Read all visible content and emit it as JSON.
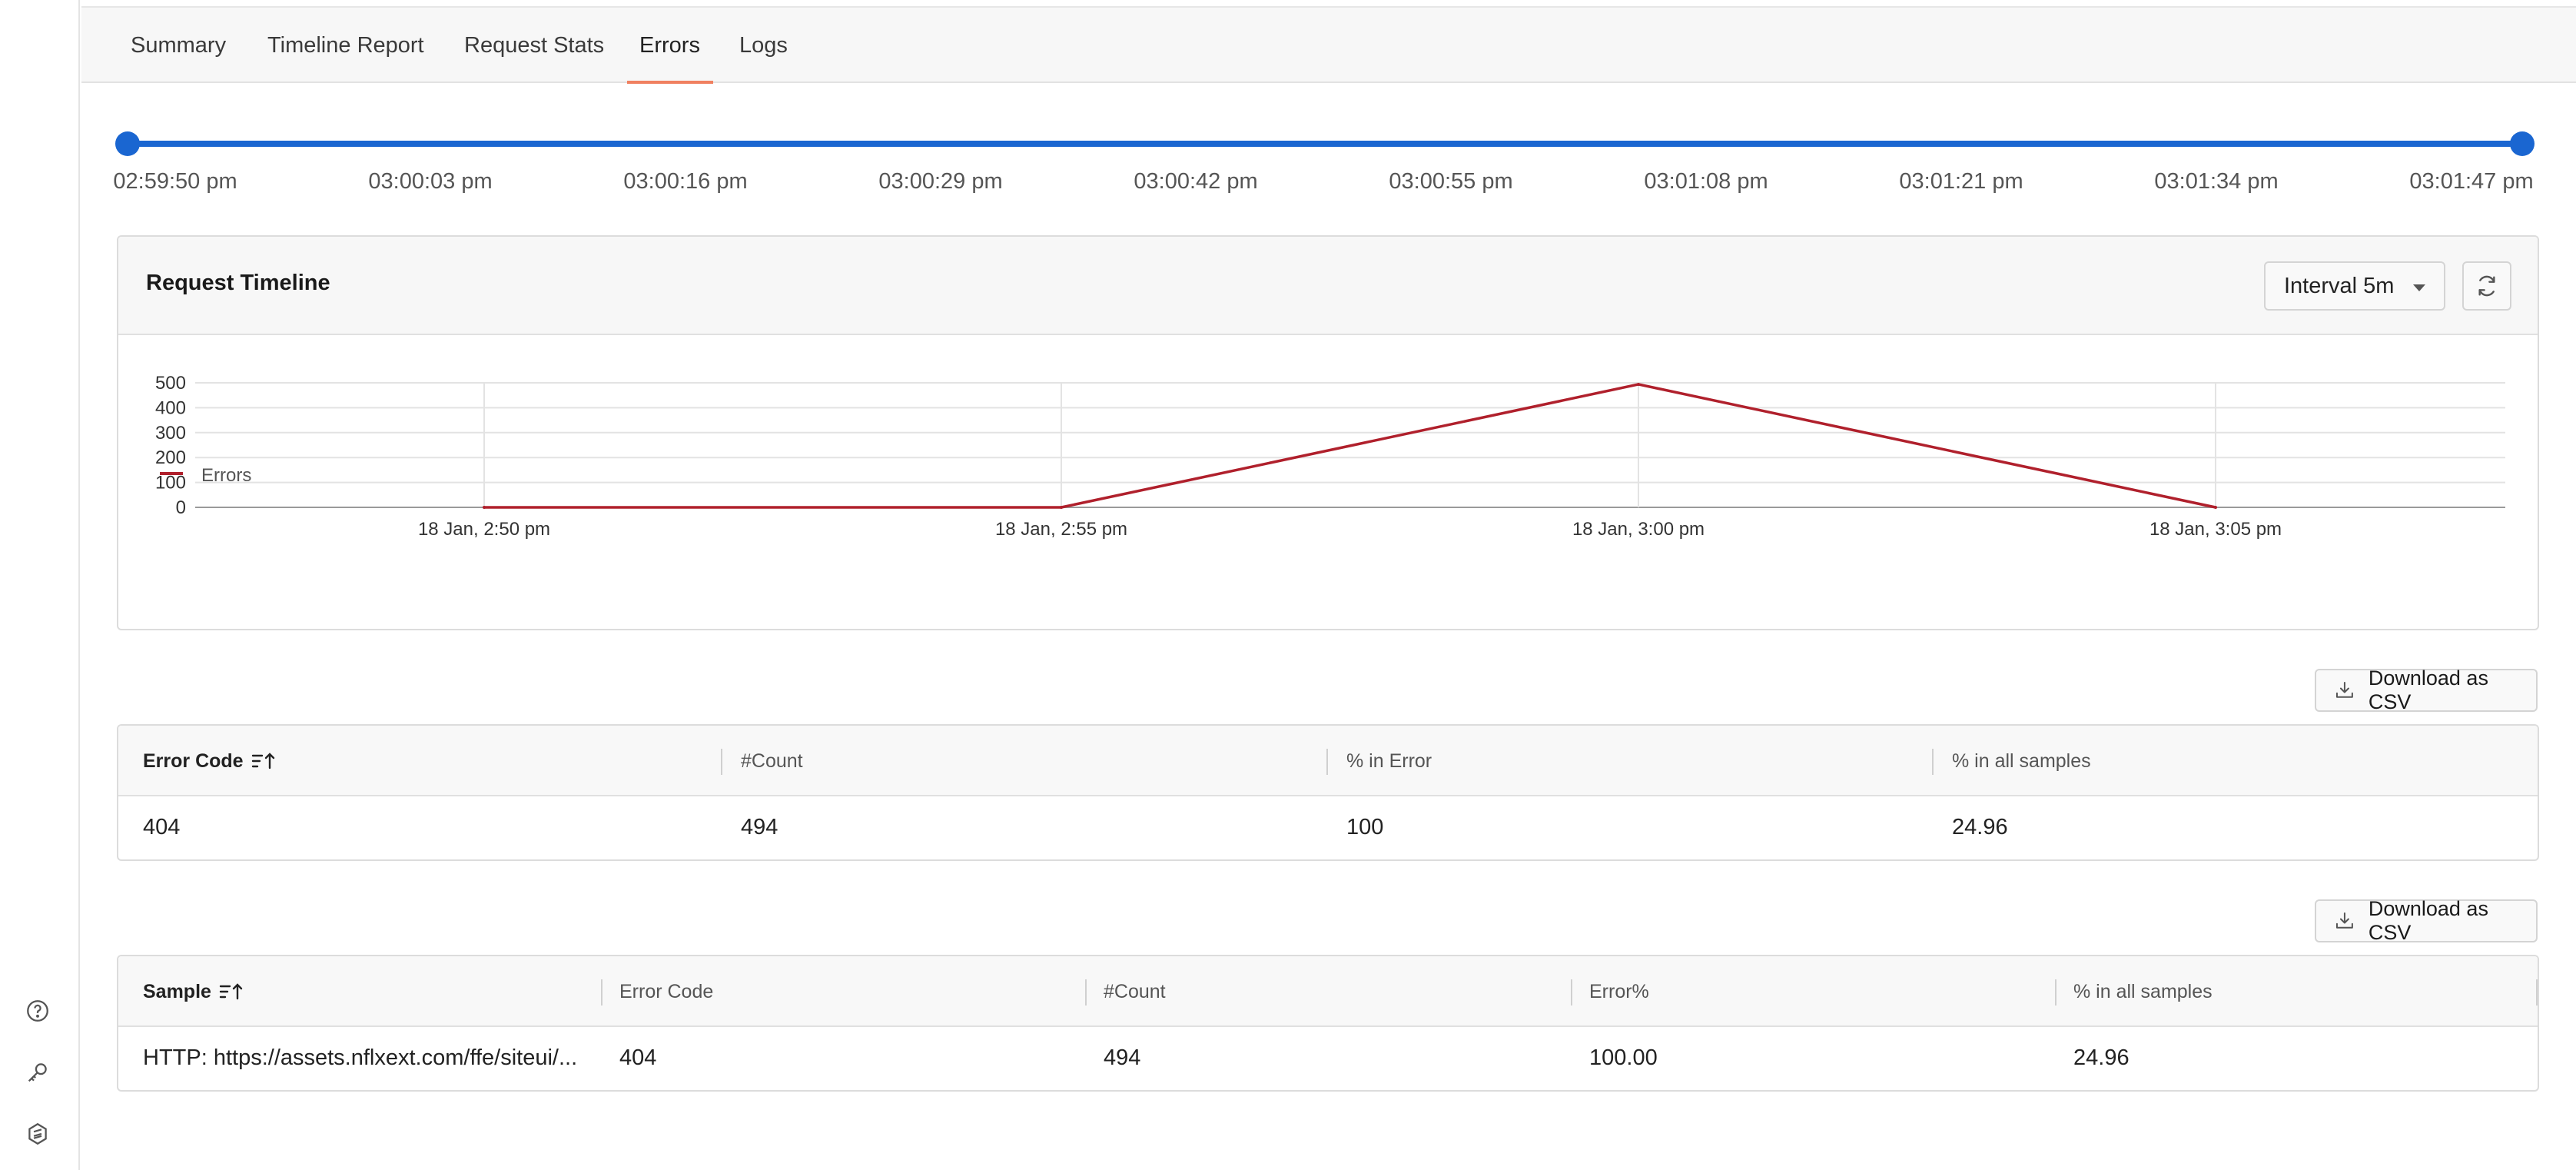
{
  "nav": {
    "tabs": [
      {
        "label": "Summary"
      },
      {
        "label": "Timeline Report"
      },
      {
        "label": "Request Stats"
      },
      {
        "label": "Errors"
      },
      {
        "label": "Logs"
      }
    ],
    "active_tab": "Errors",
    "accent_color": "#f08060"
  },
  "rail": {
    "icons": [
      "help-icon",
      "key-icon",
      "logo-icon"
    ]
  },
  "time_range": {
    "ticks": [
      "02:59:50 pm",
      "03:00:03 pm",
      "03:00:16 pm",
      "03:00:29 pm",
      "03:00:42 pm",
      "03:00:55 pm",
      "03:01:08 pm",
      "03:01:21 pm",
      "03:01:34 pm",
      "03:01:47 pm"
    ],
    "selected_start": "02:59:50 pm",
    "selected_end": "03:01:47 pm",
    "color": "#1a66d1"
  },
  "timeline_card": {
    "title": "Request Timeline",
    "interval_label": "Interval 5m"
  },
  "chart_data": {
    "type": "line",
    "title": "",
    "xlabel": "",
    "ylabel": "",
    "x": [
      "18 Jan, 2:50 pm",
      "18 Jan, 2:55 pm",
      "18 Jan, 3:00 pm",
      "18 Jan, 3:05 pm"
    ],
    "y_ticks": [
      0,
      100,
      200,
      300,
      400,
      500
    ],
    "ylim": [
      0,
      500
    ],
    "series": [
      {
        "name": "Errors",
        "color": "#b0202c",
        "values": [
          0,
          0,
          494,
          0
        ]
      }
    ],
    "grid": true,
    "legend": "bottom-left"
  },
  "error_codes_table": {
    "download_label": "Download as CSV",
    "columns": [
      "Error Code",
      "#Count",
      "% in Error",
      "% in all samples"
    ],
    "rows": [
      [
        "404",
        "494",
        "100",
        "24.96"
      ]
    ]
  },
  "samples_table": {
    "download_label": "Download as CSV",
    "columns": [
      "Sample",
      "Error Code",
      "#Count",
      "Error%",
      "% in all samples"
    ],
    "rows": [
      [
        "HTTP: https://assets.nflxext.com/ffe/siteui/...",
        "404",
        "494",
        "100.00",
        "24.96"
      ]
    ]
  }
}
